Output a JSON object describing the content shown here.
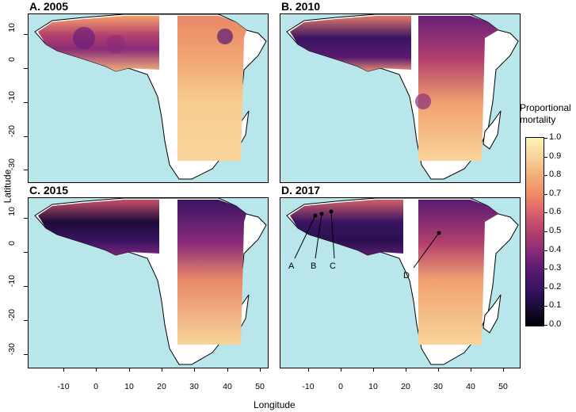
{
  "panels": [
    {
      "id": "a",
      "title": "A. 2005"
    },
    {
      "id": "b",
      "title": "B. 2010"
    },
    {
      "id": "c",
      "title": "C. 2015"
    },
    {
      "id": "d",
      "title": "D. 2017"
    }
  ],
  "axes": {
    "xlabel": "Longitude",
    "ylabel": "Latitude",
    "xticks": [
      "-10",
      "0",
      "10",
      "20",
      "30",
      "40",
      "50"
    ],
    "yticks": [
      "10",
      "0",
      "-10",
      "-20",
      "-30"
    ]
  },
  "legend": {
    "title_line1": "Proportional",
    "title_line2": "mortality",
    "ticks": [
      "1.0",
      "0.9",
      "0.8",
      "0.7",
      "0.6",
      "0.5",
      "0.4",
      "0.3",
      "0.2",
      "0.1",
      "0.0"
    ]
  },
  "annotations": {
    "a": "A",
    "b": "B",
    "c": "C",
    "d": "D"
  },
  "colors": {
    "ocean": "#b8e6ea",
    "land": "#ffffff",
    "high": "#f8d49a",
    "low": "#000004"
  }
}
